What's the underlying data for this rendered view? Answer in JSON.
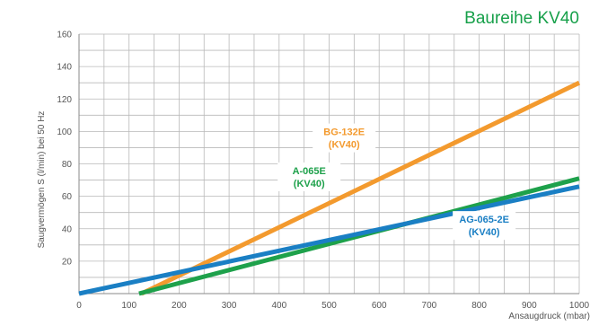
{
  "chart_data": {
    "type": "line",
    "title": "Baureihe KV40",
    "xlabel": "Ansaugdruck (mbar)",
    "ylabel": "Saugvermögen S (l/min) bei 50 Hz",
    "xlim": [
      0,
      1000
    ],
    "ylim": [
      0,
      160
    ],
    "x_ticks": [
      0,
      100,
      200,
      300,
      400,
      500,
      600,
      700,
      800,
      900,
      1000
    ],
    "y_ticks": [
      20,
      40,
      60,
      80,
      100,
      120,
      140,
      160
    ],
    "grid": true,
    "series": [
      {
        "name": "BG-132E (KV40)",
        "label_lines": [
          "BG-132E",
          "(KV40)"
        ],
        "color": "#f39a2e",
        "x": [
          125,
          1000
        ],
        "y": [
          0,
          130
        ]
      },
      {
        "name": "A-065E (KV40)",
        "label_lines": [
          "A-065E",
          "(KV40)"
        ],
        "color": "#1ea14b",
        "x": [
          120,
          1000
        ],
        "y": [
          0,
          71
        ]
      },
      {
        "name": "AG-065-2E (KV40)",
        "label_lines": [
          "AG-065-2E",
          "(KV40)"
        ],
        "color": "#1a7fc4",
        "x": [
          0,
          1000
        ],
        "y": [
          0,
          66
        ]
      }
    ]
  }
}
